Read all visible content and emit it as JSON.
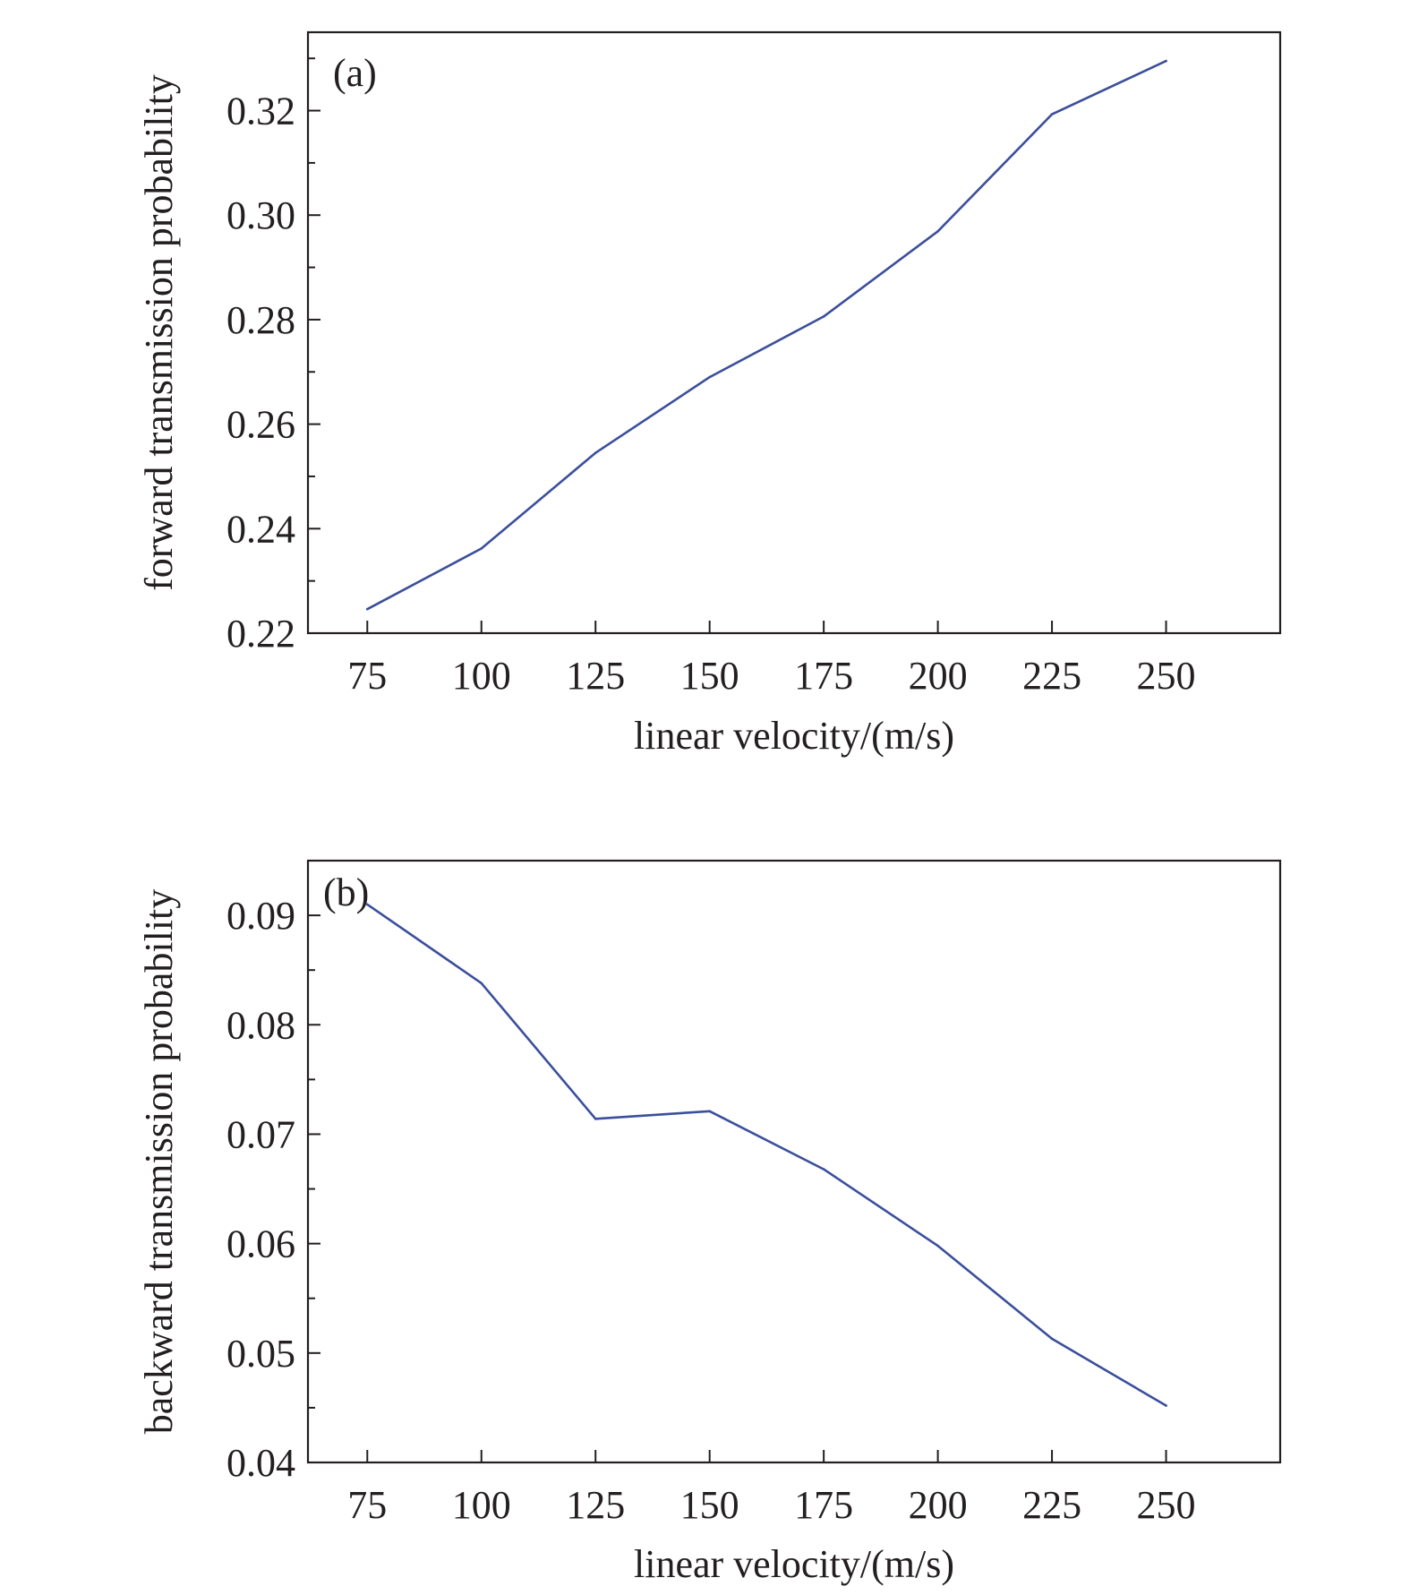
{
  "colors": {
    "line": "#3b4f9b",
    "axis": "#231f20"
  },
  "chart_data": [
    {
      "panel_label": "(a)",
      "type": "line",
      "xlabel": "linear velocity/(m/s)",
      "ylabel": "forward transmission probability",
      "xlim": [
        62,
        275
      ],
      "ylim": [
        0.22,
        0.335
      ],
      "xticks": [
        75,
        100,
        125,
        150,
        175,
        200,
        225,
        250
      ],
      "xtick_labels": [
        "75",
        "100",
        "125",
        "150",
        "175",
        "200",
        "225",
        "250"
      ],
      "yticks": [
        0.22,
        0.24,
        0.26,
        0.28,
        0.3,
        0.32
      ],
      "ytick_labels": [
        "0.22",
        "0.24",
        "0.26",
        "0.28",
        "0.30",
        "0.32"
      ],
      "yminor": [
        0.23,
        0.25,
        0.27,
        0.29,
        0.31,
        0.33
      ],
      "grid": false,
      "series": [
        {
          "x": [
            75,
            100,
            125,
            150,
            175,
            200,
            225,
            250
          ],
          "values": [
            0.2246,
            0.2362,
            0.2545,
            0.269,
            0.2806,
            0.2969,
            0.3193,
            0.3295
          ]
        }
      ]
    },
    {
      "panel_label": "(b)",
      "type": "line",
      "xlabel": "linear velocity/(m/s)",
      "ylabel": "backward transmission probability",
      "xlim": [
        62,
        275
      ],
      "ylim": [
        0.04,
        0.095
      ],
      "xticks": [
        75,
        100,
        125,
        150,
        175,
        200,
        225,
        250
      ],
      "xtick_labels": [
        "75",
        "100",
        "125",
        "150",
        "175",
        "200",
        "225",
        "250"
      ],
      "yticks": [
        0.04,
        0.05,
        0.06,
        0.07,
        0.08,
        0.09
      ],
      "ytick_labels": [
        "0.04",
        "0.05",
        "0.06",
        "0.07",
        "0.08",
        "0.09"
      ],
      "yminor": [
        0.045,
        0.055,
        0.065,
        0.075,
        0.085
      ],
      "grid": false,
      "series": [
        {
          "x": [
            75,
            100,
            125,
            150,
            175,
            200,
            225,
            250
          ],
          "values": [
            0.091,
            0.0838,
            0.0714,
            0.0721,
            0.0668,
            0.0598,
            0.0513,
            0.0452
          ]
        }
      ]
    }
  ]
}
